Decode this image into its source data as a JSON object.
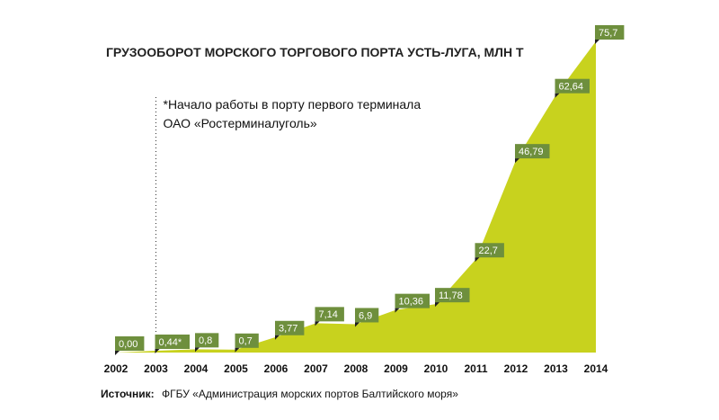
{
  "chart_data": {
    "type": "area",
    "title": "ГРУЗООБОРОТ МОРСКОГО ТОРГОВОГО ПОРТА УСТЬ-ЛУГА, МЛН Т",
    "categories": [
      "2002",
      "2003",
      "2004",
      "2005",
      "2006",
      "2007",
      "2008",
      "2009",
      "2010",
      "2011",
      "2012",
      "2013",
      "2014"
    ],
    "values": [
      0.0,
      0.44,
      0.8,
      0.7,
      3.77,
      7.14,
      6.9,
      10.36,
      11.78,
      22.7,
      46.79,
      62.64,
      75.7
    ],
    "data_labels": [
      "0,00",
      "0,44*",
      "0,8",
      "0,7",
      "3,77",
      "7,14",
      "6,9",
      "10,36",
      "11,78",
      "22,7",
      "46,79",
      "62,64",
      "75,7"
    ],
    "ylim": [
      0,
      75.7
    ],
    "grid": false,
    "annotation": {
      "year": "2003",
      "lines": [
        "*Начало работы в порту первого терминала",
        "ОАО «Ростерминалуголь»"
      ]
    },
    "colors": {
      "area": "#c8d21e",
      "label_box": "#6e8f3d",
      "label_text": "#ffffff",
      "dotted_line": "#333333"
    }
  },
  "source": {
    "label": "Источник:",
    "text": "ФГБУ «Администрация морских портов Балтийского моря»"
  }
}
